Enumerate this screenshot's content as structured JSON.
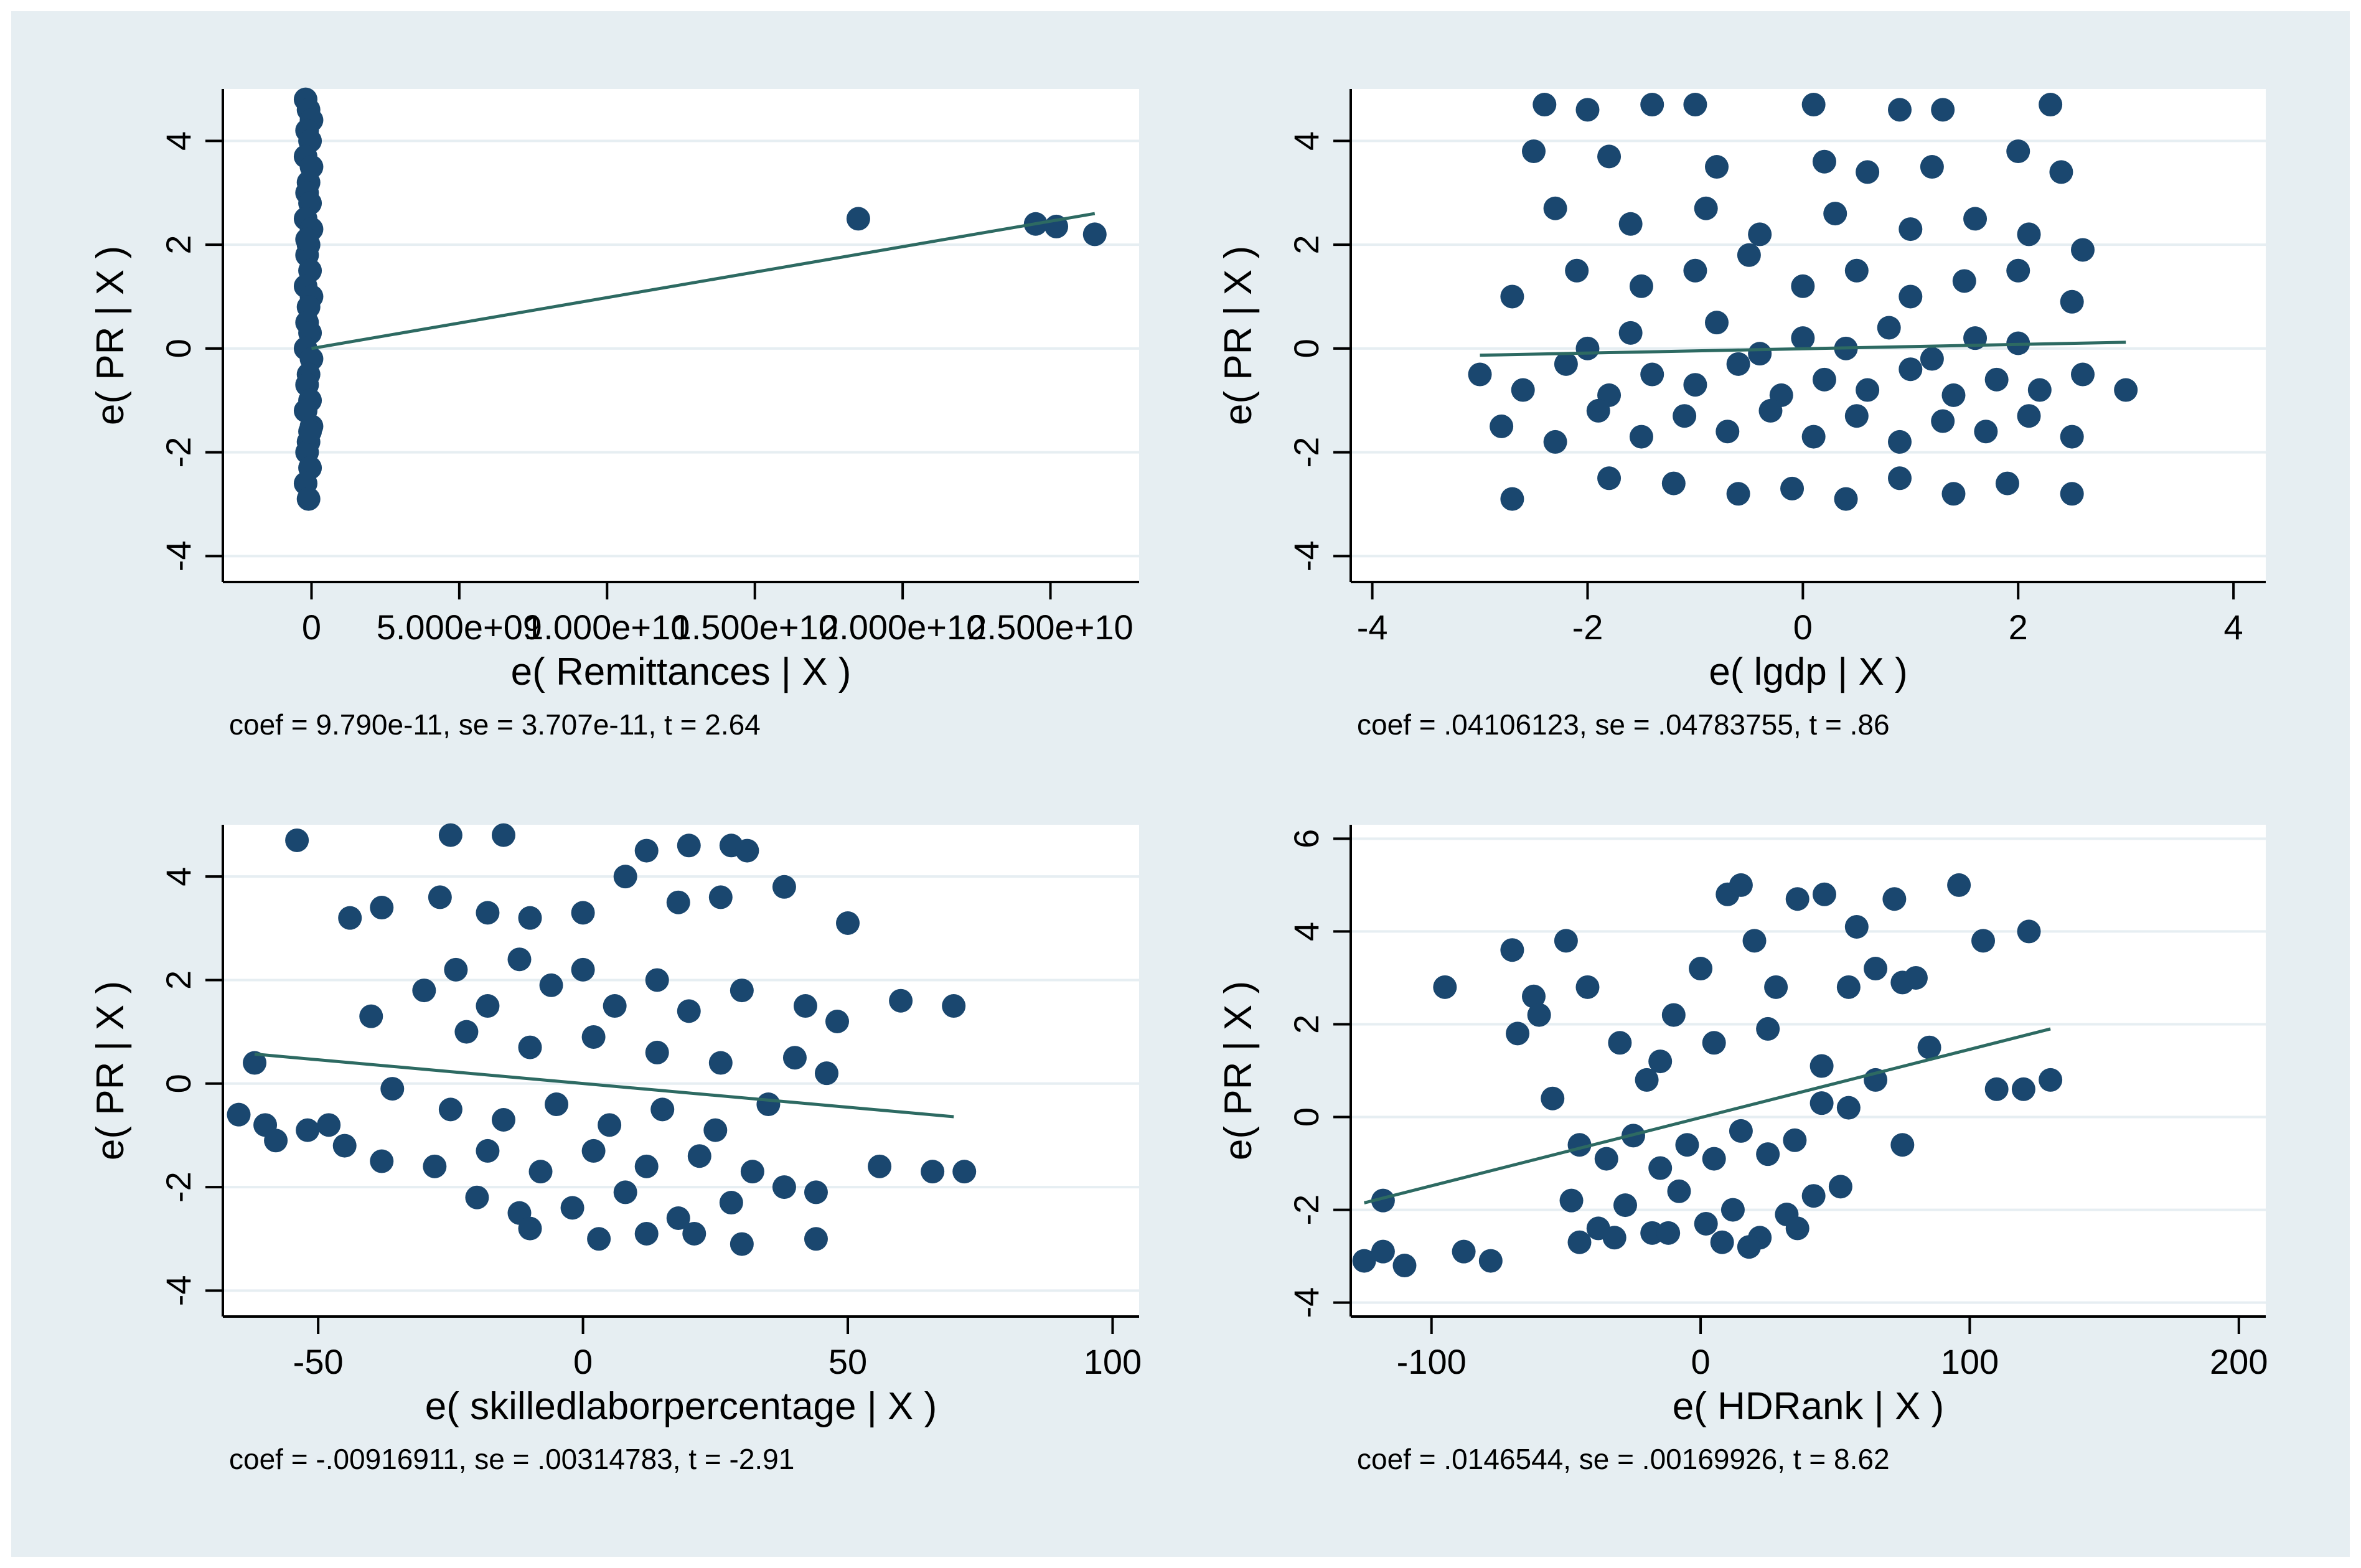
{
  "colors": {
    "background": "#e6eef2",
    "plot_background": "#ffffff",
    "marker": "#1a476f",
    "fit_line": "#2d6a62",
    "grid": "#e6eef2",
    "axis": "#000000"
  },
  "chart_data": [
    {
      "type": "scatter",
      "xlabel": "e( Remittances | X )",
      "ylabel": "e( PR | X )",
      "note": "coef = 9.790e-11, se = 3.707e-11, t = 2.64",
      "xlim": [
        -3000000000,
        28000000000
      ],
      "ylim": [
        -4.5,
        5.0
      ],
      "xticks": [
        0,
        5000000000,
        10000000000,
        15000000000,
        20000000000,
        25000000000
      ],
      "xtick_labels": [
        "0",
        "5.000e+09",
        "1.000e+10",
        "1.500e+10",
        "2.000e+10",
        "2.500e+10"
      ],
      "yticks": [
        -4,
        -2,
        0,
        2,
        4
      ],
      "ytick_labels": [
        "-4",
        "-2",
        "0",
        "2",
        "4"
      ],
      "fit": {
        "x": [
          0,
          26500000000
        ],
        "y": [
          0.0,
          2.6
        ]
      },
      "points": [
        [
          -200000000,
          4.8
        ],
        [
          -100000000,
          4.6
        ],
        [
          0,
          4.4
        ],
        [
          -150000000,
          4.2
        ],
        [
          -50000000,
          4.0
        ],
        [
          -200000000,
          3.7
        ],
        [
          0,
          3.5
        ],
        [
          -100000000,
          3.2
        ],
        [
          -150000000,
          3.0
        ],
        [
          -50000000,
          2.8
        ],
        [
          -200000000,
          2.5
        ],
        [
          0,
          2.3
        ],
        [
          -100000000,
          2.0
        ],
        [
          -150000000,
          1.8
        ],
        [
          -50000000,
          1.5
        ],
        [
          -200000000,
          1.2
        ],
        [
          0,
          1.0
        ],
        [
          -100000000,
          0.8
        ],
        [
          -150000000,
          0.5
        ],
        [
          -50000000,
          0.3
        ],
        [
          -200000000,
          0.0
        ],
        [
          0,
          -0.2
        ],
        [
          -100000000,
          -0.5
        ],
        [
          -150000000,
          -0.7
        ],
        [
          -50000000,
          -1.0
        ],
        [
          -200000000,
          -1.2
        ],
        [
          0,
          -1.5
        ],
        [
          -100000000,
          -1.8
        ],
        [
          -150000000,
          -2.0
        ],
        [
          -50000000,
          -2.3
        ],
        [
          -200000000,
          -2.6
        ],
        [
          -100000000,
          -2.9
        ],
        [
          -50000000,
          -1.6
        ],
        [
          -150000000,
          2.1
        ],
        [
          18500000000,
          2.5
        ],
        [
          24500000000,
          2.4
        ],
        [
          25200000000,
          2.35
        ],
        [
          26500000000,
          2.2
        ]
      ]
    },
    {
      "type": "scatter",
      "xlabel": "e( lgdp | X )",
      "ylabel": "e( PR | X )",
      "note": "coef = .04106123, se = .04783755, t = .86",
      "xlim": [
        -4.2,
        4.3
      ],
      "ylim": [
        -4.5,
        5.0
      ],
      "xticks": [
        -4,
        -2,
        0,
        2,
        4
      ],
      "xtick_labels": [
        "-4",
        "-2",
        "0",
        "2",
        "4"
      ],
      "yticks": [
        -4,
        -2,
        0,
        2,
        4
      ],
      "ytick_labels": [
        "-4",
        "-2",
        "0",
        "2",
        "4"
      ],
      "fit": {
        "x": [
          -3.0,
          3.0
        ],
        "y": [
          -0.13,
          0.12
        ]
      },
      "points": [
        [
          -2.4,
          4.7
        ],
        [
          -2.0,
          4.6
        ],
        [
          -1.4,
          4.7
        ],
        [
          -1.0,
          4.7
        ],
        [
          0.1,
          4.7
        ],
        [
          0.9,
          4.6
        ],
        [
          1.3,
          4.6
        ],
        [
          2.3,
          4.7
        ],
        [
          -2.5,
          3.8
        ],
        [
          -1.8,
          3.7
        ],
        [
          -0.8,
          3.5
        ],
        [
          0.2,
          3.6
        ],
        [
          0.6,
          3.4
        ],
        [
          1.2,
          3.5
        ],
        [
          2.0,
          3.8
        ],
        [
          2.4,
          3.4
        ],
        [
          -2.3,
          2.7
        ],
        [
          -1.6,
          2.4
        ],
        [
          -0.9,
          2.7
        ],
        [
          -0.4,
          2.2
        ],
        [
          0.3,
          2.6
        ],
        [
          1.0,
          2.3
        ],
        [
          1.6,
          2.5
        ],
        [
          2.1,
          2.2
        ],
        [
          2.6,
          1.9
        ],
        [
          -2.7,
          1.0
        ],
        [
          -2.1,
          1.5
        ],
        [
          -1.5,
          1.2
        ],
        [
          -1.0,
          1.5
        ],
        [
          -0.5,
          1.8
        ],
        [
          0.0,
          1.2
        ],
        [
          0.5,
          1.5
        ],
        [
          1.0,
          1.0
        ],
        [
          1.5,
          1.3
        ],
        [
          2.0,
          1.5
        ],
        [
          2.5,
          0.9
        ],
        [
          -3.0,
          -0.5
        ],
        [
          -2.6,
          -0.8
        ],
        [
          -2.2,
          -0.3
        ],
        [
          -1.8,
          -0.9
        ],
        [
          -1.4,
          -0.5
        ],
        [
          -1.0,
          -0.7
        ],
        [
          -0.6,
          -0.3
        ],
        [
          -0.2,
          -0.9
        ],
        [
          0.2,
          -0.6
        ],
        [
          0.6,
          -0.8
        ],
        [
          1.0,
          -0.4
        ],
        [
          1.4,
          -0.9
        ],
        [
          1.8,
          -0.6
        ],
        [
          2.2,
          -0.8
        ],
        [
          2.6,
          -0.5
        ],
        [
          3.0,
          -0.8
        ],
        [
          -2.8,
          -1.5
        ],
        [
          -2.3,
          -1.8
        ],
        [
          -1.9,
          -1.2
        ],
        [
          -1.5,
          -1.7
        ],
        [
          -1.1,
          -1.3
        ],
        [
          -0.7,
          -1.6
        ],
        [
          -0.3,
          -1.2
        ],
        [
          0.1,
          -1.7
        ],
        [
          0.5,
          -1.3
        ],
        [
          0.9,
          -1.8
        ],
        [
          1.3,
          -1.4
        ],
        [
          1.7,
          -1.6
        ],
        [
          2.1,
          -1.3
        ],
        [
          2.5,
          -1.7
        ],
        [
          -2.7,
          -2.9
        ],
        [
          -1.8,
          -2.5
        ],
        [
          -1.2,
          -2.6
        ],
        [
          -0.6,
          -2.8
        ],
        [
          -0.1,
          -2.7
        ],
        [
          0.4,
          -2.9
        ],
        [
          0.9,
          -2.5
        ],
        [
          1.4,
          -2.8
        ],
        [
          1.9,
          -2.6
        ],
        [
          2.5,
          -2.8
        ],
        [
          -1.6,
          0.3
        ],
        [
          -0.8,
          0.5
        ],
        [
          0.0,
          0.2
        ],
        [
          0.8,
          0.4
        ],
        [
          1.6,
          0.2
        ],
        [
          -2.0,
          0.0
        ],
        [
          -0.4,
          -0.1
        ],
        [
          0.4,
          0.0
        ],
        [
          1.2,
          -0.2
        ],
        [
          2.0,
          0.1
        ]
      ]
    },
    {
      "type": "scatter",
      "xlabel": "e( skilledlaborpercentage | X )",
      "ylabel": "e( PR | X )",
      "note": "coef = -.00916911, se = .00314783, t = -2.91",
      "xlim": [
        -68,
        105
      ],
      "ylim": [
        -4.5,
        5.0
      ],
      "xticks": [
        -50,
        0,
        50,
        100
      ],
      "xtick_labels": [
        "-50",
        "0",
        "50",
        "100"
      ],
      "yticks": [
        -4,
        -2,
        0,
        2,
        4
      ],
      "ytick_labels": [
        "-4",
        "-2",
        "0",
        "2",
        "4"
      ],
      "fit": {
        "x": [
          -62,
          70
        ],
        "y": [
          0.57,
          -0.64
        ]
      },
      "points": [
        [
          -54,
          4.7
        ],
        [
          -25,
          4.8
        ],
        [
          -15,
          4.8
        ],
        [
          20,
          4.6
        ],
        [
          28,
          4.6
        ],
        [
          31,
          4.5
        ],
        [
          -44,
          3.2
        ],
        [
          -38,
          3.4
        ],
        [
          -27,
          3.6
        ],
        [
          -18,
          3.3
        ],
        [
          -10,
          3.2
        ],
        [
          0,
          3.3
        ],
        [
          8,
          4.0
        ],
        [
          12,
          4.5
        ],
        [
          18,
          3.5
        ],
        [
          26,
          3.6
        ],
        [
          38,
          3.8
        ],
        [
          50,
          3.1
        ],
        [
          -30,
          1.8
        ],
        [
          -24,
          2.2
        ],
        [
          -18,
          1.5
        ],
        [
          -12,
          2.4
        ],
        [
          -6,
          1.9
        ],
        [
          0,
          2.2
        ],
        [
          6,
          1.5
        ],
        [
          14,
          2.0
        ],
        [
          20,
          1.4
        ],
        [
          30,
          1.8
        ],
        [
          42,
          1.5
        ],
        [
          48,
          1.2
        ],
        [
          60,
          1.6
        ],
        [
          70,
          1.5
        ],
        [
          -40,
          1.3
        ],
        [
          -22,
          1.0
        ],
        [
          -10,
          0.7
        ],
        [
          2,
          0.9
        ],
        [
          14,
          0.6
        ],
        [
          26,
          0.4
        ],
        [
          40,
          0.5
        ],
        [
          46,
          0.2
        ],
        [
          -65,
          -0.6
        ],
        [
          -60,
          -0.8
        ],
        [
          -52,
          -0.9
        ],
        [
          -36,
          -0.1
        ],
        [
          -25,
          -0.5
        ],
        [
          -15,
          -0.7
        ],
        [
          -5,
          -0.4
        ],
        [
          5,
          -0.8
        ],
        [
          15,
          -0.5
        ],
        [
          25,
          -0.9
        ],
        [
          35,
          -0.4
        ],
        [
          -45,
          -1.2
        ],
        [
          -38,
          -1.5
        ],
        [
          -28,
          -1.6
        ],
        [
          -18,
          -1.3
        ],
        [
          -8,
          -1.7
        ],
        [
          2,
          -1.3
        ],
        [
          12,
          -1.6
        ],
        [
          22,
          -1.4
        ],
        [
          32,
          -1.7
        ],
        [
          56,
          -1.6
        ],
        [
          66,
          -1.7
        ],
        [
          72,
          -1.7
        ],
        [
          -20,
          -2.2
        ],
        [
          -12,
          -2.5
        ],
        [
          -2,
          -2.4
        ],
        [
          8,
          -2.1
        ],
        [
          18,
          -2.6
        ],
        [
          28,
          -2.3
        ],
        [
          38,
          -2.0
        ],
        [
          44,
          -2.1
        ],
        [
          -10,
          -2.8
        ],
        [
          3,
          -3.0
        ],
        [
          12,
          -2.9
        ],
        [
          21,
          -2.9
        ],
        [
          30,
          -3.1
        ],
        [
          44,
          -3.0
        ],
        [
          -62,
          0.4
        ],
        [
          -58,
          -1.1
        ],
        [
          -48,
          -0.8
        ]
      ]
    },
    {
      "type": "scatter",
      "xlabel": "e( HDRank | X )",
      "ylabel": "e( PR | X )",
      "note": "coef = .0146544, se = .00169926, t = 8.62",
      "xlim": [
        -130,
        210
      ],
      "ylim": [
        -4.3,
        6.3
      ],
      "xticks": [
        -100,
        0,
        100,
        200
      ],
      "xtick_labels": [
        "-100",
        "0",
        "100",
        "200"
      ],
      "yticks": [
        -4,
        -2,
        0,
        2,
        4,
        6
      ],
      "ytick_labels": [
        "-4",
        "-2",
        "0",
        "2",
        "4",
        "6"
      ],
      "fit": {
        "x": [
          -125,
          130
        ],
        "y": [
          -1.85,
          1.9
        ]
      },
      "points": [
        [
          -125,
          -3.1
        ],
        [
          -118,
          -2.9
        ],
        [
          -110,
          -3.2
        ],
        [
          -88,
          -2.9
        ],
        [
          -78,
          -3.1
        ],
        [
          -95,
          2.8
        ],
        [
          -118,
          -1.8
        ],
        [
          -68,
          1.8
        ],
        [
          -62,
          2.6
        ],
        [
          -70,
          3.6
        ],
        [
          -60,
          2.2
        ],
        [
          -50,
          3.8
        ],
        [
          -42,
          2.8
        ],
        [
          -30,
          1.6
        ],
        [
          -20,
          0.8
        ],
        [
          -10,
          2.2
        ],
        [
          0,
          3.2
        ],
        [
          10,
          4.8
        ],
        [
          15,
          5.0
        ],
        [
          20,
          3.8
        ],
        [
          28,
          2.8
        ],
        [
          36,
          4.7
        ],
        [
          46,
          4.8
        ],
        [
          58,
          4.1
        ],
        [
          72,
          4.7
        ],
        [
          96,
          5.0
        ],
        [
          -55,
          0.4
        ],
        [
          -45,
          -0.6
        ],
        [
          -35,
          -0.9
        ],
        [
          -25,
          -0.4
        ],
        [
          -15,
          -1.1
        ],
        [
          -5,
          -0.6
        ],
        [
          5,
          -0.9
        ],
        [
          15,
          -0.3
        ],
        [
          25,
          -0.8
        ],
        [
          35,
          -0.5
        ],
        [
          45,
          0.3
        ],
        [
          55,
          0.2
        ],
        [
          65,
          0.8
        ],
        [
          75,
          -0.6
        ],
        [
          -48,
          -1.8
        ],
        [
          -38,
          -2.4
        ],
        [
          -28,
          -1.9
        ],
        [
          -18,
          -2.5
        ],
        [
          -8,
          -1.6
        ],
        [
          2,
          -2.3
        ],
        [
          12,
          -2.0
        ],
        [
          22,
          -2.6
        ],
        [
          32,
          -2.1
        ],
        [
          42,
          -1.7
        ],
        [
          52,
          -1.5
        ],
        [
          -45,
          -2.7
        ],
        [
          -32,
          -2.6
        ],
        [
          -12,
          -2.5
        ],
        [
          8,
          -2.7
        ],
        [
          18,
          -2.8
        ],
        [
          36,
          -2.4
        ],
        [
          -15,
          1.2
        ],
        [
          5,
          1.6
        ],
        [
          25,
          1.9
        ],
        [
          45,
          1.1
        ],
        [
          55,
          2.8
        ],
        [
          65,
          3.2
        ],
        [
          75,
          2.9
        ],
        [
          85,
          1.5
        ],
        [
          110,
          0.6
        ],
        [
          120,
          0.6
        ],
        [
          130,
          0.8
        ],
        [
          105,
          3.8
        ],
        [
          122,
          4.0
        ],
        [
          80,
          3.0
        ]
      ]
    }
  ]
}
